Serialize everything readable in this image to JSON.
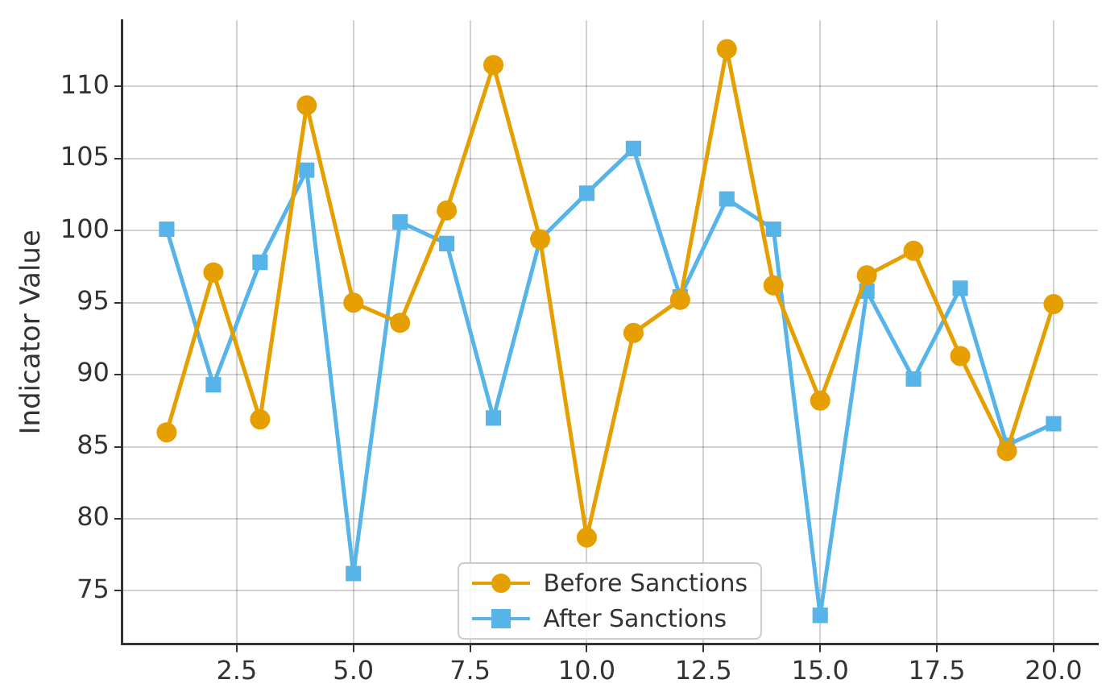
{
  "chart_data": {
    "type": "line",
    "ylabel": "Indicator Value",
    "x": [
      1,
      2,
      3,
      4,
      5,
      6,
      7,
      8,
      9,
      10,
      11,
      12,
      13,
      14,
      15,
      16,
      17,
      18,
      19,
      20
    ],
    "series": [
      {
        "name": "Before Sanctions",
        "color": "#e69f00",
        "marker": "circle",
        "values": [
          86.0,
          97.1,
          86.9,
          108.7,
          95.0,
          93.6,
          101.4,
          111.5,
          99.4,
          78.7,
          92.9,
          95.2,
          112.6,
          96.2,
          88.2,
          96.9,
          98.6,
          91.3,
          84.7,
          94.9
        ]
      },
      {
        "name": "After Sanctions",
        "color": "#56b4e9",
        "marker": "square",
        "values": [
          100.1,
          89.3,
          97.8,
          104.2,
          76.2,
          100.6,
          99.1,
          87.0,
          99.4,
          102.6,
          105.7,
          95.4,
          102.2,
          100.1,
          73.3,
          95.8,
          89.7,
          96.0,
          85.1,
          86.6
        ]
      }
    ],
    "xlim": [
      0.05,
      20.95
    ],
    "xticks": [
      {
        "value": 2.5,
        "label": "2.5"
      },
      {
        "value": 5,
        "label": "5.0"
      },
      {
        "value": 7.5,
        "label": "7.5"
      },
      {
        "value": 10,
        "label": "10.0"
      },
      {
        "value": 12.5,
        "label": "12.5"
      },
      {
        "value": 15,
        "label": "15.0"
      },
      {
        "value": 17.5,
        "label": "17.5"
      },
      {
        "value": 20,
        "label": "20.0"
      }
    ],
    "ylim": [
      71.3,
      114.6
    ],
    "yticks": [
      75,
      80,
      85,
      90,
      95,
      100,
      105,
      110
    ],
    "grid": true,
    "legend": "bottom",
    "line_style": "solid"
  }
}
